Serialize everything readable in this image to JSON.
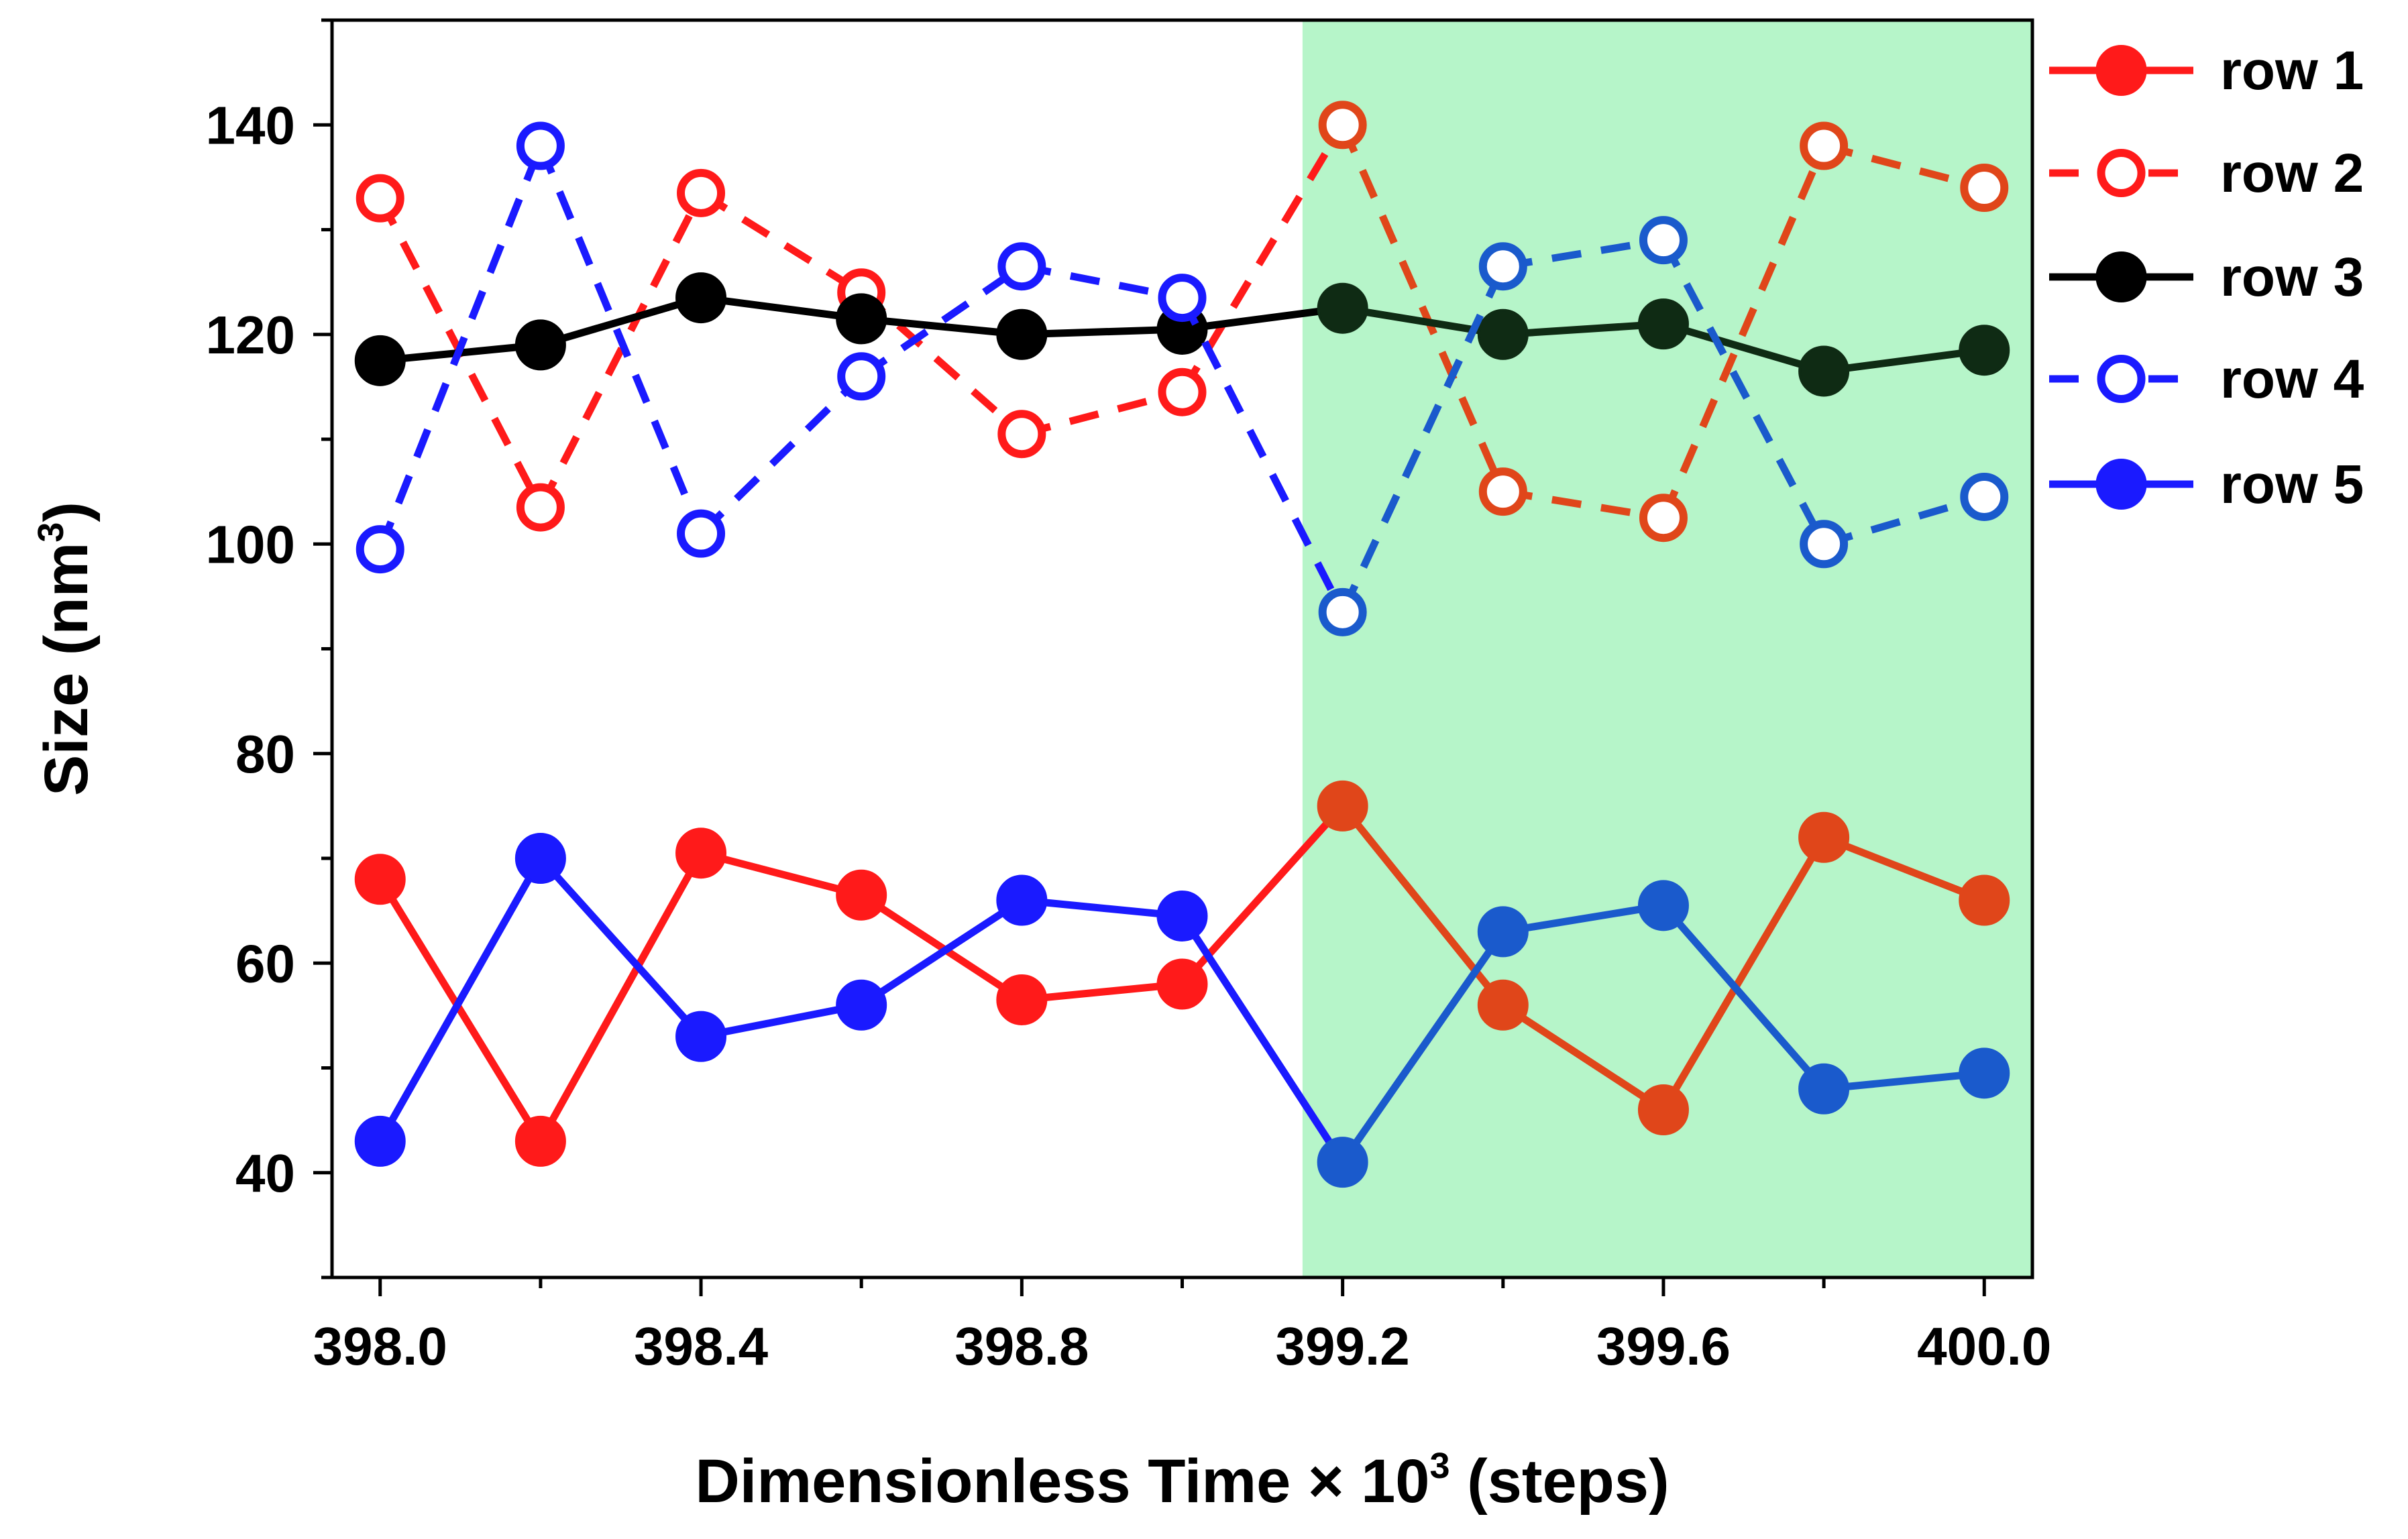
{
  "chart_data": {
    "type": "line",
    "title": "",
    "xlabel": {
      "main": "Dimensionless Time × 10",
      "sup": "3",
      "suffix": " (steps)"
    },
    "ylabel": {
      "main": "Size (nm",
      "sup": "3",
      "suffix": ")"
    },
    "xlim": [
      397.94,
      400.06
    ],
    "ylim": [
      30,
      150
    ],
    "xticks": [
      398.0,
      398.4,
      398.8,
      399.2,
      399.6,
      400.0
    ],
    "xtick_labels": [
      "398.0",
      "398.4",
      "398.8",
      "399.2",
      "399.6",
      "400.0"
    ],
    "yticks": [
      40,
      60,
      80,
      100,
      120,
      140
    ],
    "ytick_labels": [
      "40",
      "60",
      "80",
      "100",
      "120",
      "140"
    ],
    "shaded_region": {
      "x": [
        399.15,
        400.06
      ],
      "color": "#b6f5c9"
    },
    "x": [
      398.0,
      398.2,
      398.4,
      398.6,
      398.8,
      399.0,
      399.2,
      399.4,
      399.6,
      399.8,
      400.0
    ],
    "series": [
      {
        "name": "row 1",
        "color": "#ff1a1a",
        "shaded_color": "#e0461a",
        "filled": true,
        "dashed": false,
        "values": [
          68,
          43,
          70.5,
          66.5,
          56.5,
          58,
          75,
          56,
          46,
          72,
          66
        ]
      },
      {
        "name": "row 2",
        "color": "#ff1a1a",
        "shaded_color": "#e0461a",
        "filled": false,
        "dashed": true,
        "values": [
          133,
          103.5,
          133.5,
          124,
          110.5,
          114.5,
          140,
          105,
          102.5,
          138,
          134
        ]
      },
      {
        "name": "row 3",
        "color": "#000000",
        "shaded_color": "#0f2b14",
        "filled": true,
        "dashed": false,
        "values": [
          117.5,
          119,
          123.5,
          121.5,
          120,
          120.5,
          122.5,
          120,
          121,
          116.5,
          118.5
        ]
      },
      {
        "name": "row 4",
        "color": "#1a1aff",
        "shaded_color": "#1a5acc",
        "filled": false,
        "dashed": true,
        "values": [
          99.5,
          138,
          101,
          116,
          126.5,
          123.5,
          93.5,
          126.5,
          129,
          100,
          104.5
        ]
      },
      {
        "name": "row 5",
        "color": "#1a1aff",
        "shaded_color": "#1a5acc",
        "filled": true,
        "dashed": false,
        "values": [
          43,
          70,
          53,
          56,
          66,
          64.5,
          41,
          63,
          65.5,
          48,
          49.5
        ]
      }
    ],
    "legend": {
      "position": "top-right-outside",
      "entries": [
        "row 1",
        "row 2",
        "row 3",
        "row 4",
        "row 5"
      ]
    }
  }
}
